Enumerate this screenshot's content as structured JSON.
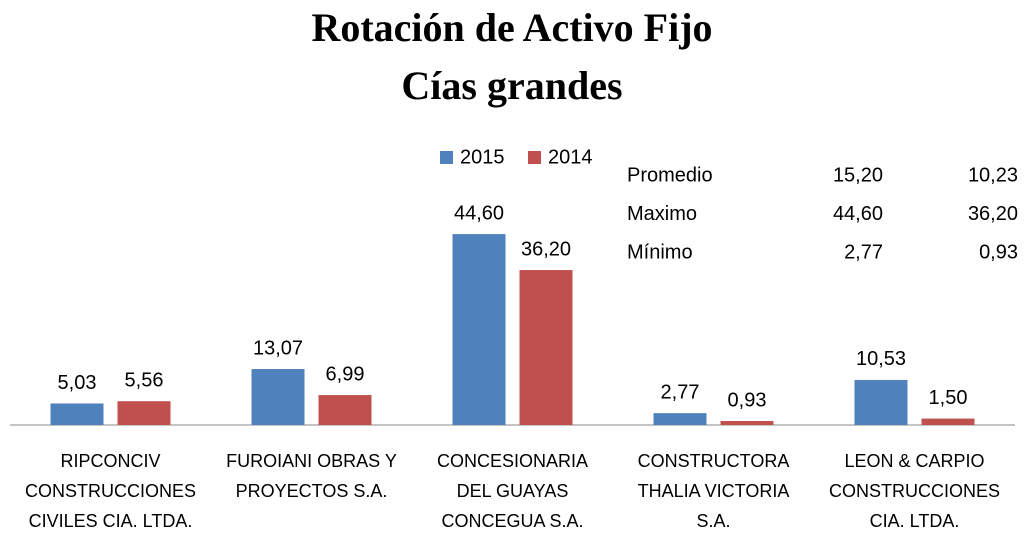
{
  "chart_data": {
    "type": "bar",
    "title": [
      "Rotación de Activo Fijo",
      "Cías grandes"
    ],
    "categories": [
      "RIPCONCIV\nCONSTRUCCIONES\nCIVILES CIA. LTDA.",
      "FUROIANI OBRAS Y\nPROYECTOS S.A.",
      "CONCESIONARIA\nDEL GUAYAS\nCONCEGUA S.A.",
      "CONSTRUCTORA\nTHALIA VICTORIA\nS.A.",
      "LEON & CARPIO\nCONSTRUCCIONES\nCIA. LTDA."
    ],
    "series": [
      {
        "name": "2015",
        "color": "#4f81bd",
        "values": [
          5.03,
          13.07,
          44.6,
          2.77,
          10.53
        ],
        "value_labels": [
          "5,03",
          "13,07",
          "44,60",
          "2,77",
          "10,53"
        ]
      },
      {
        "name": "2014",
        "color": "#c0504d",
        "values": [
          5.56,
          6.99,
          36.2,
          0.93,
          1.5
        ],
        "value_labels": [
          "5,56",
          "6,99",
          "36,20",
          "0,93",
          "1,50"
        ]
      }
    ],
    "ylim": [
      0,
      50
    ],
    "stats": {
      "rows": [
        [
          "Promedio",
          "15,20",
          "10,23"
        ],
        [
          "Maximo",
          "44,60",
          "36,20"
        ],
        [
          "Mínimo",
          "2,77",
          "0,93"
        ]
      ]
    }
  }
}
